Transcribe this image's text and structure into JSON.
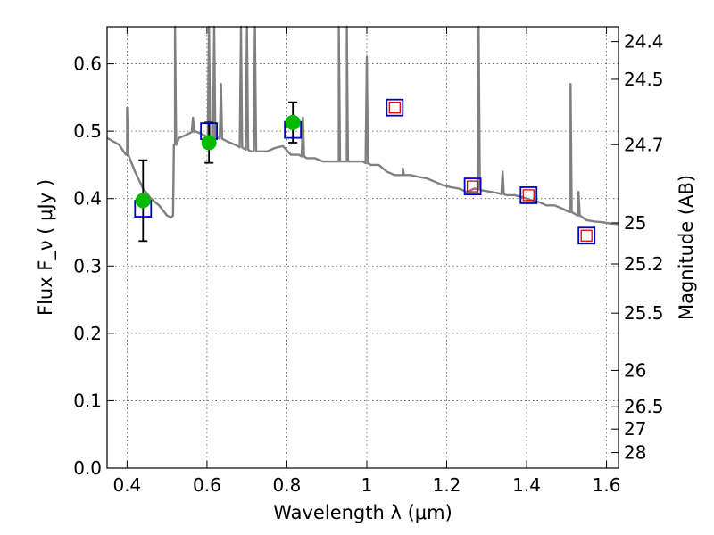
{
  "chart_data": {
    "type": "scatter",
    "xlabel": "Wavelength  λ (μm)",
    "ylabel": "Flux  F_ν  ( μJy )",
    "ylabel_right": "Magnitude (AB)",
    "xlim": [
      0.35,
      1.63
    ],
    "ylim": [
      0.0,
      0.655
    ],
    "grid": true,
    "x_ticks": [
      0.4,
      0.6,
      0.8,
      1.0,
      1.2,
      1.4,
      1.6
    ],
    "x_tick_labels": [
      "0.4",
      "0.6",
      "0.8",
      "1",
      "1.2",
      "1.4",
      "1.6"
    ],
    "y_ticks": [
      0.0,
      0.1,
      0.2,
      0.3,
      0.4,
      0.5,
      0.6
    ],
    "y_tick_labels": [
      "0.0",
      "0.1",
      "0.2",
      "0.3",
      "0.4",
      "0.5",
      "0.6"
    ],
    "right_ticks": [
      {
        "label": "24.4",
        "flux": 0.633
      },
      {
        "label": "24.5",
        "flux": 0.577
      },
      {
        "label": "24.7",
        "flux": 0.48
      },
      {
        "label": "25",
        "flux": 0.364
      },
      {
        "label": "25.2",
        "flux": 0.303
      },
      {
        "label": "25.5",
        "flux": 0.23
      },
      {
        "label": "26",
        "flux": 0.145
      },
      {
        "label": "26.5",
        "flux": 0.091
      },
      {
        "label": "27",
        "flux": 0.058
      },
      {
        "label": "28",
        "flux": 0.023
      }
    ],
    "series": [
      {
        "style": "model-spectrum-line",
        "color": "#808080",
        "x": [
          0.35,
          0.38,
          0.4,
          0.42,
          0.44,
          0.46,
          0.48,
          0.5,
          0.51,
          0.515,
          0.52,
          0.53,
          0.55,
          0.57,
          0.59,
          0.61,
          0.63,
          0.65,
          0.67,
          0.69,
          0.71,
          0.73,
          0.75,
          0.77,
          0.79,
          0.81,
          0.83,
          0.85,
          0.87,
          0.89,
          0.91,
          0.93,
          0.95,
          0.97,
          0.99,
          1.01,
          1.03,
          1.05,
          1.07,
          1.09,
          1.11,
          1.13,
          1.15,
          1.17,
          1.19,
          1.21,
          1.23,
          1.25,
          1.27,
          1.29,
          1.31,
          1.33,
          1.35,
          1.37,
          1.39,
          1.41,
          1.43,
          1.45,
          1.47,
          1.49,
          1.51,
          1.53,
          1.55,
          1.57,
          1.59,
          1.61,
          1.63
        ],
        "y": [
          0.49,
          0.48,
          0.465,
          0.44,
          0.415,
          0.4,
          0.39,
          0.375,
          0.372,
          0.375,
          0.48,
          0.49,
          0.495,
          0.5,
          0.495,
          0.49,
          0.49,
          0.485,
          0.48,
          0.475,
          0.47,
          0.47,
          0.47,
          0.475,
          0.478,
          0.465,
          0.465,
          0.46,
          0.46,
          0.455,
          0.455,
          0.455,
          0.455,
          0.455,
          0.455,
          0.45,
          0.45,
          0.44,
          0.435,
          0.435,
          0.435,
          0.432,
          0.43,
          0.425,
          0.42,
          0.417,
          0.415,
          0.41,
          0.415,
          0.412,
          0.41,
          0.408,
          0.405,
          0.405,
          0.402,
          0.398,
          0.395,
          0.39,
          0.39,
          0.385,
          0.38,
          0.375,
          0.368,
          0.366,
          0.365,
          0.363,
          0.362
        ],
        "spikes": [
          {
            "x": 0.4,
            "peak": 0.535
          },
          {
            "x": 0.52,
            "peak": 0.655
          },
          {
            "x": 0.565,
            "peak": 0.52
          },
          {
            "x": 0.605,
            "peak": 0.655
          },
          {
            "x": 0.618,
            "peak": 0.655
          },
          {
            "x": 0.635,
            "peak": 0.57
          },
          {
            "x": 0.685,
            "peak": 0.655
          },
          {
            "x": 0.7,
            "peak": 0.655
          },
          {
            "x": 0.72,
            "peak": 0.655
          },
          {
            "x": 0.84,
            "peak": 0.52
          },
          {
            "x": 0.93,
            "peak": 0.655
          },
          {
            "x": 0.95,
            "peak": 0.655
          },
          {
            "x": 1.0,
            "peak": 0.61
          },
          {
            "x": 1.09,
            "peak": 0.445
          },
          {
            "x": 1.28,
            "peak": 0.655
          },
          {
            "x": 1.34,
            "peak": 0.44
          },
          {
            "x": 1.51,
            "peak": 0.57
          },
          {
            "x": 1.53,
            "peak": 0.41
          }
        ]
      },
      {
        "style": "observed-flux-green-circle-with-errorbar",
        "color": "#00bb00",
        "points": [
          {
            "x": 0.44,
            "y": 0.397,
            "err": 0.06
          },
          {
            "x": 0.605,
            "y": 0.483,
            "err": 0.03
          },
          {
            "x": 0.815,
            "y": 0.513,
            "err": 0.03
          }
        ]
      },
      {
        "style": "model-flux-blue-square",
        "color": "#0000cc",
        "points": [
          {
            "x": 0.44,
            "y": 0.385
          },
          {
            "x": 0.605,
            "y": 0.5
          },
          {
            "x": 0.815,
            "y": 0.502
          },
          {
            "x": 1.07,
            "y": 0.535
          },
          {
            "x": 1.265,
            "y": 0.418
          },
          {
            "x": 1.405,
            "y": 0.405
          },
          {
            "x": 1.55,
            "y": 0.345
          }
        ]
      },
      {
        "style": "synthetic-flux-red-square",
        "color": "#dd0000",
        "points": [
          {
            "x": 1.07,
            "y": 0.535
          },
          {
            "x": 1.265,
            "y": 0.418
          },
          {
            "x": 1.405,
            "y": 0.405
          },
          {
            "x": 1.55,
            "y": 0.345
          }
        ]
      }
    ]
  }
}
